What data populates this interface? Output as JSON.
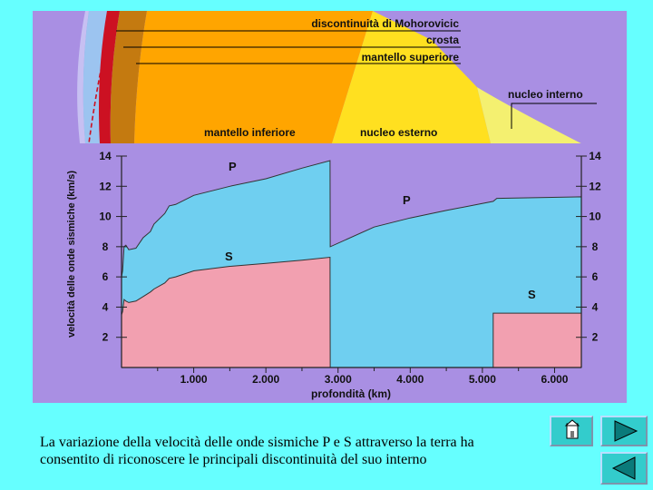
{
  "figure": {
    "labels": {
      "moho": "discontinuità di Mohorovicic",
      "crust": "crosta",
      "upper_mantle": "mantello superiore",
      "inner_core": "nucleo interno",
      "lower_mantle": "mantello inferiore",
      "outer_core": "nucleo esterno"
    },
    "colors": {
      "background": "#a98fe3",
      "crust_red": "#cc1122",
      "upper_mantle": "#c47a10",
      "lower_mantle": "#ffa500",
      "outer_core": "#ffe020",
      "inner_core": "#f4f070",
      "p_wave_fill": "#6fcff0",
      "s_wave_fill": "#f2a0b0"
    }
  },
  "chart_data": {
    "type": "area",
    "title": "",
    "xlabel": "profondità (km)",
    "ylabel": "velocità delle onde sismiche (km/s)",
    "xlim": [
      0,
      6371
    ],
    "ylim": [
      0,
      14
    ],
    "x_ticks": [
      "1.000",
      "2.000",
      "3.000",
      "4.000",
      "5.000",
      "6.000"
    ],
    "y_ticks_left": [
      "2",
      "4",
      "6",
      "8",
      "10",
      "12",
      "14"
    ],
    "y_ticks_right": [
      "2",
      "4",
      "6",
      "8",
      "10",
      "12",
      "14"
    ],
    "series": [
      {
        "name": "P",
        "points": [
          [
            0,
            6.0
          ],
          [
            15,
            6.4
          ],
          [
            35,
            8.0
          ],
          [
            60,
            8.1
          ],
          [
            100,
            7.8
          ],
          [
            200,
            7.9
          ],
          [
            300,
            8.6
          ],
          [
            400,
            9.0
          ],
          [
            450,
            9.5
          ],
          [
            600,
            10.2
          ],
          [
            660,
            10.7
          ],
          [
            750,
            10.8
          ],
          [
            1000,
            11.4
          ],
          [
            1500,
            12.0
          ],
          [
            2000,
            12.5
          ],
          [
            2500,
            13.2
          ],
          [
            2889,
            13.7
          ],
          [
            2891,
            8.0
          ],
          [
            3500,
            9.3
          ],
          [
            4000,
            9.9
          ],
          [
            4500,
            10.4
          ],
          [
            5150,
            11.0
          ],
          [
            5200,
            11.2
          ],
          [
            6371,
            11.3
          ]
        ]
      },
      {
        "name": "S",
        "points": [
          [
            0,
            3.5
          ],
          [
            15,
            3.7
          ],
          [
            35,
            4.5
          ],
          [
            60,
            4.4
          ],
          [
            100,
            4.3
          ],
          [
            200,
            4.4
          ],
          [
            300,
            4.7
          ],
          [
            400,
            5.0
          ],
          [
            450,
            5.2
          ],
          [
            600,
            5.6
          ],
          [
            660,
            5.9
          ],
          [
            750,
            6.0
          ],
          [
            1000,
            6.4
          ],
          [
            1500,
            6.7
          ],
          [
            2000,
            6.9
          ],
          [
            2500,
            7.1
          ],
          [
            2889,
            7.3
          ],
          [
            2891,
            0
          ],
          [
            5149,
            0
          ],
          [
            5150,
            3.6
          ],
          [
            6371,
            3.6
          ]
        ]
      }
    ]
  },
  "caption": {
    "line1": "La variazione della velocità delle onde sismiche P e S attraverso la terra ha",
    "line2": "consentito di riconoscere le principali discontinuità del suo interno"
  }
}
